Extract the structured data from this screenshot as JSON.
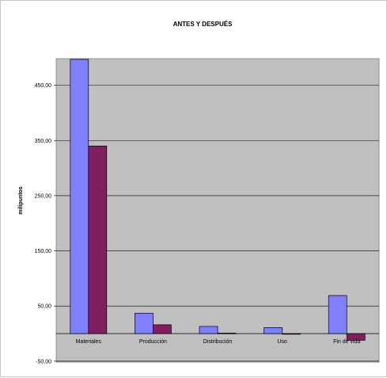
{
  "chart_data": {
    "type": "bar",
    "title": "ANTES Y DESPUÉS",
    "ylabel": "milipuntos",
    "xlabel": "",
    "categories": [
      "Materiales",
      "Producción",
      "Distribución",
      "Uso",
      "Fin de vida"
    ],
    "series": [
      {
        "values": [
          497,
          37,
          13,
          11,
          69
        ],
        "color": "#8080ff"
      },
      {
        "values": [
          340,
          16,
          1,
          0,
          -12
        ],
        "color": "#7f1f5f"
      }
    ],
    "ylim": [
      -50,
      500
    ],
    "yticks": [
      -50,
      50,
      150,
      250,
      350,
      450
    ],
    "ytick_labels": [
      "-50,00",
      "50,00",
      "150,00",
      "250,00",
      "350,00",
      "450,00"
    ],
    "grid": true,
    "legend": "none",
    "plot_background": "#c0c0c0",
    "gridline_color": "#000000"
  }
}
